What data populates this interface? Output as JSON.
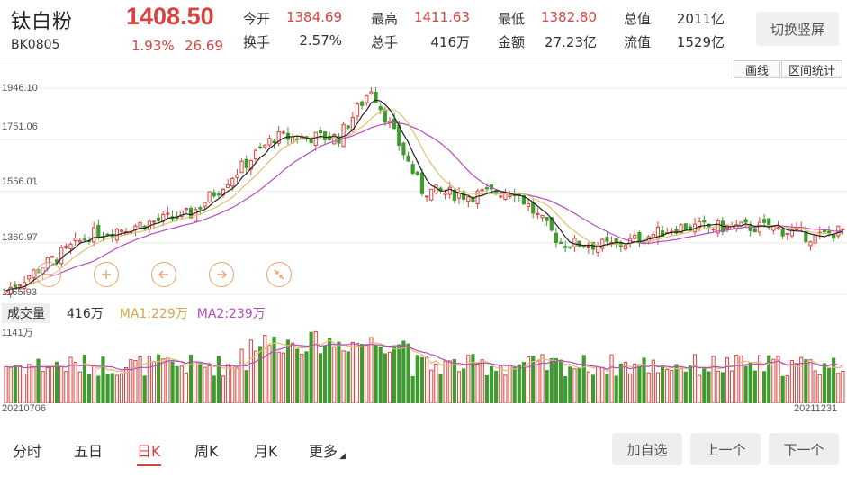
{
  "header": {
    "name": "钛白粉",
    "code": "BK0805",
    "price": "1408.50",
    "pct": "1.93%",
    "change": "26.69",
    "stats": [
      {
        "label": "今开",
        "value": "1384.69",
        "red": true
      },
      {
        "label": "最高",
        "value": "1411.63",
        "red": true
      },
      {
        "label": "最低",
        "value": "1382.80",
        "red": true
      },
      {
        "label": "总值",
        "value": "2011亿",
        "red": false
      },
      {
        "label": "换手",
        "value": "2.57%",
        "red": false
      },
      {
        "label": "总手",
        "value": "416万",
        "red": false
      },
      {
        "label": "金额",
        "value": "27.23亿",
        "red": false
      },
      {
        "label": "流值",
        "value": "1529亿",
        "red": false
      }
    ],
    "switch_label": "切换竖屏"
  },
  "toolbar": {
    "draw_label": "画线",
    "stats_label": "区间统计"
  },
  "axis": {
    "y_labels": [
      "1946.10",
      "1751.06",
      "1556.01",
      "1360.97",
      "1165.93"
    ],
    "vol_max_label": "1141万",
    "start_date": "20210706",
    "end_date": "20211231"
  },
  "volume": {
    "tag": "成交量",
    "value": "416万",
    "ma1": "MA1:229万",
    "ma2": "MA2:239万"
  },
  "colors": {
    "up": "#d9433f",
    "down": "#3f9b2e",
    "ma_fast": "#222222",
    "ma_mid": "#e0c070",
    "ma_slow": "#b34dbf"
  },
  "chart_controls": [
    "zoom-out-icon",
    "zoom-in-icon",
    "arrow-left-icon",
    "arrow-right-icon",
    "collapse-icon"
  ],
  "nav": {
    "tabs": [
      "分时",
      "五日",
      "日K",
      "周K",
      "月K",
      "更多"
    ],
    "active": "日K",
    "buttons": [
      "加自选",
      "上一个",
      "下一个"
    ]
  },
  "chart_data": {
    "type": "candlestick",
    "y_range": [
      1165.93,
      1946.1
    ],
    "x_range": [
      "20210706",
      "20211231"
    ],
    "key_points": [
      {
        "date_index": 0,
        "close": 1180
      },
      {
        "date_index": 18,
        "close": 1390
      },
      {
        "date_index": 40,
        "close": 1470
      },
      {
        "date_index": 58,
        "close": 1760
      },
      {
        "date_index": 72,
        "close": 1760
      },
      {
        "date_index": 79,
        "close": 1946
      },
      {
        "date_index": 90,
        "close": 1560
      },
      {
        "date_index": 100,
        "close": 1540
      },
      {
        "date_index": 110,
        "close": 1560
      },
      {
        "date_index": 120,
        "close": 1360
      },
      {
        "date_index": 132,
        "close": 1350
      },
      {
        "date_index": 145,
        "close": 1420
      },
      {
        "date_index": 165,
        "close": 1420
      },
      {
        "date_index": 175,
        "close": 1380
      },
      {
        "date_index": 181,
        "close": 1408.5
      }
    ]
  }
}
